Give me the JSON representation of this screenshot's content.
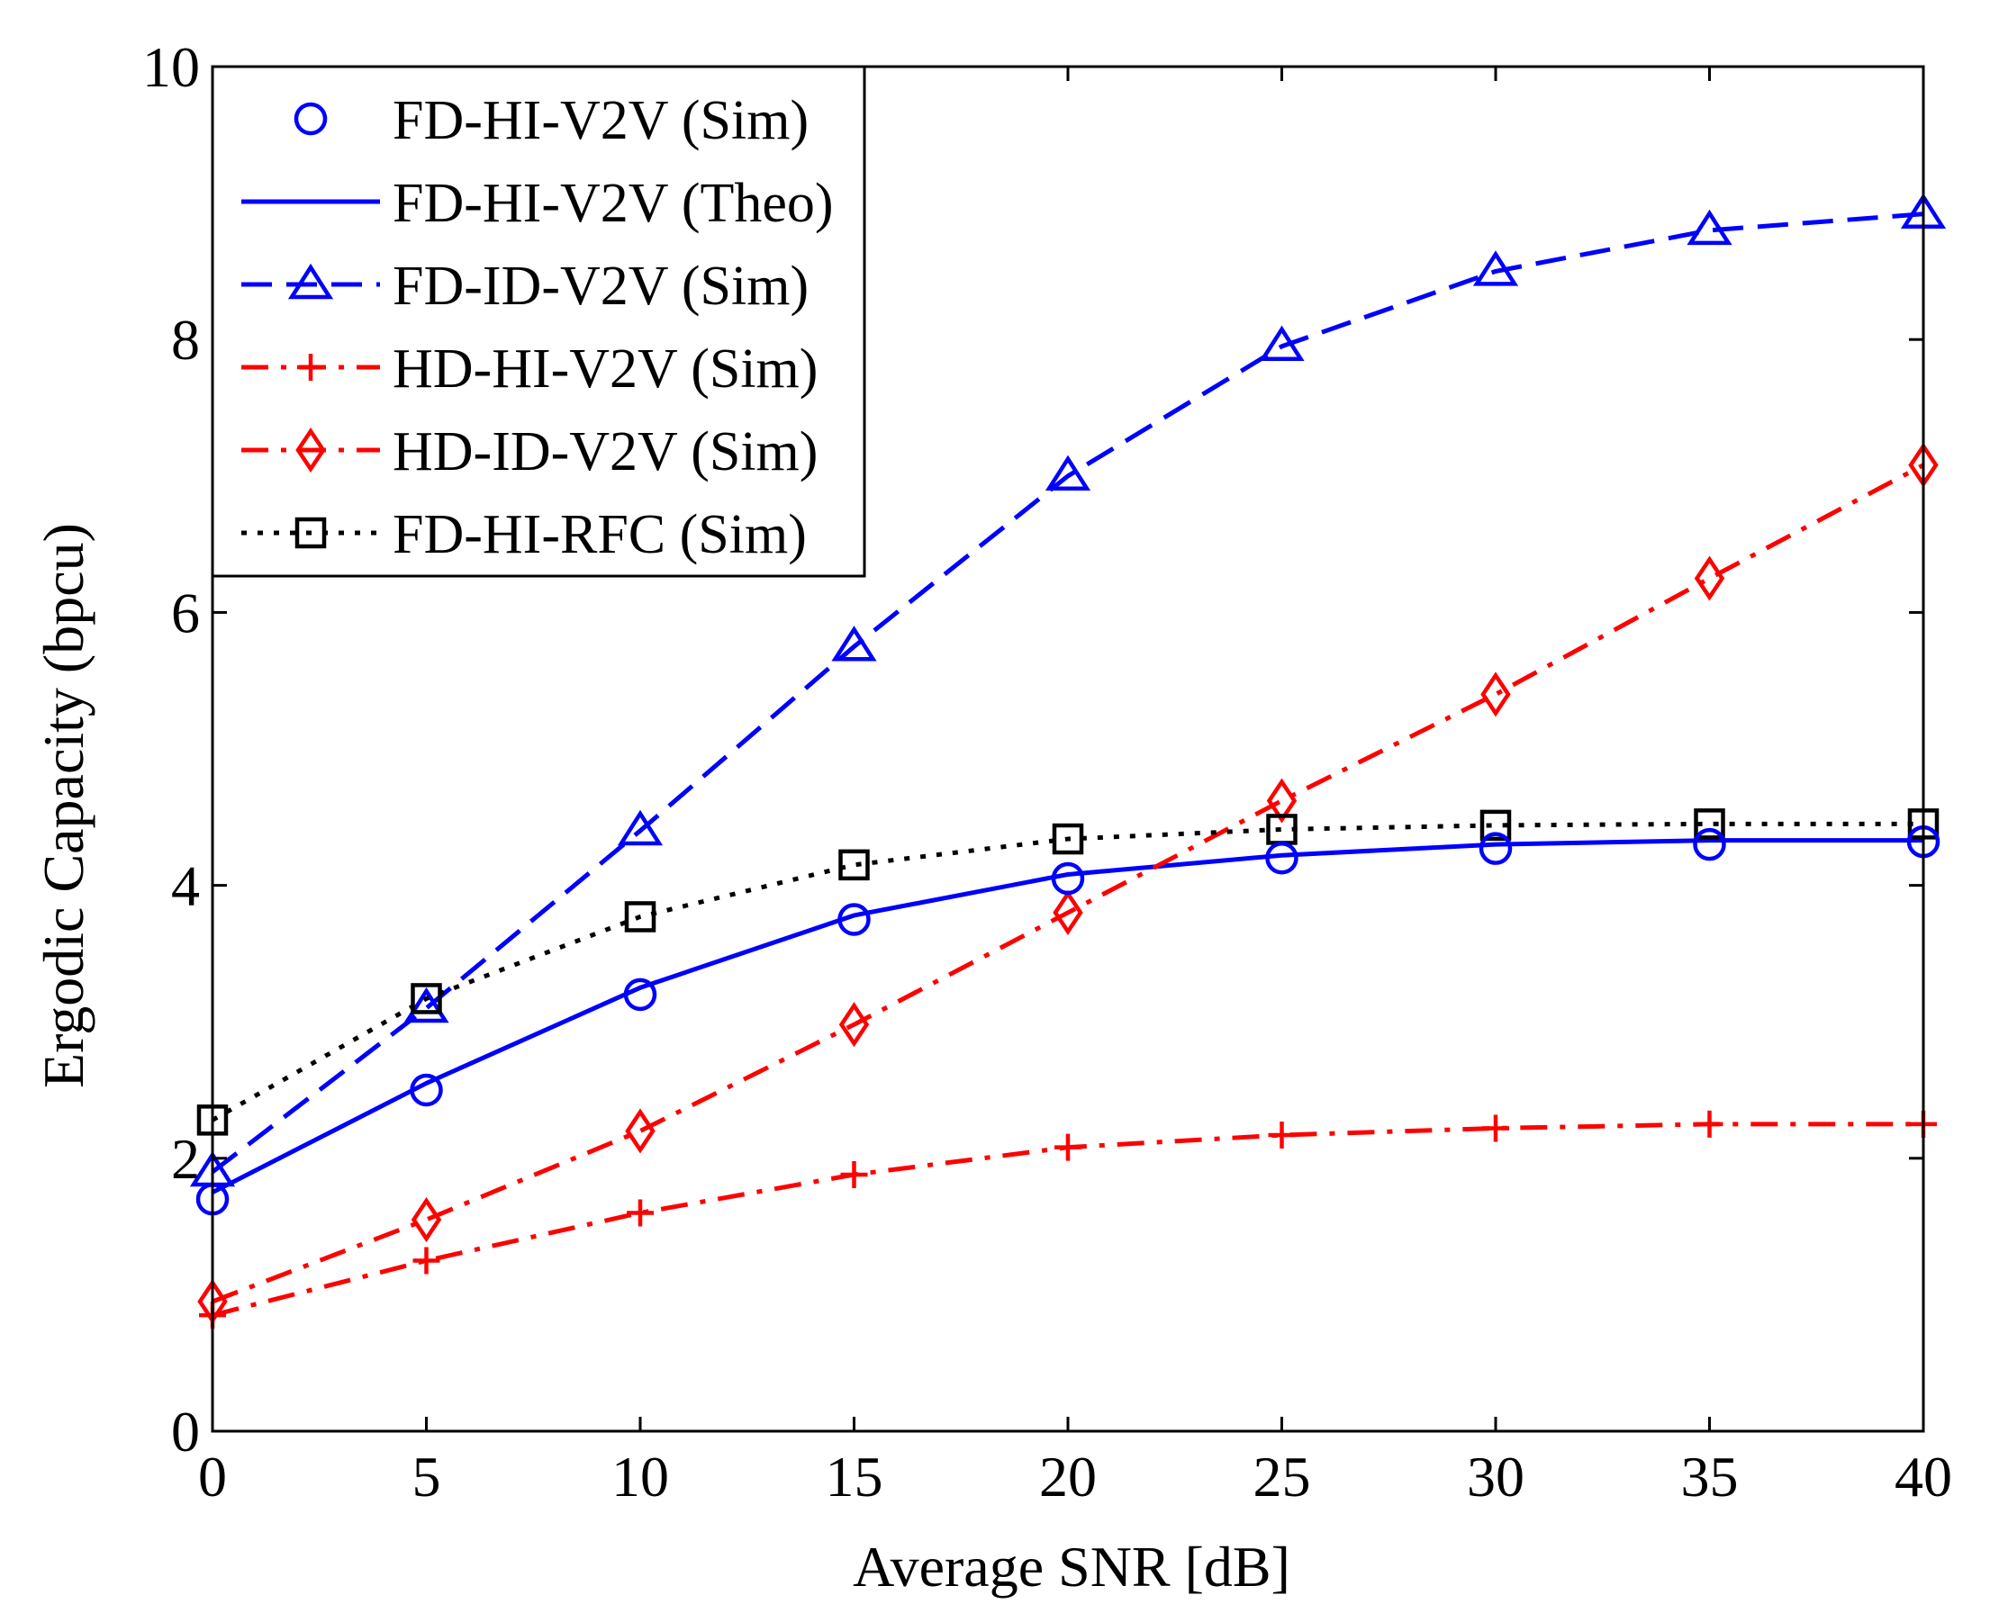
{
  "chart_data": {
    "type": "line",
    "title": "",
    "xlabel": "Average SNR [dB]",
    "ylabel": "Ergodic Capacity (bpcu)",
    "xlim": [
      0,
      40
    ],
    "ylim": [
      0,
      10
    ],
    "xticks": [
      0,
      5,
      10,
      15,
      20,
      25,
      30,
      35,
      40
    ],
    "yticks": [
      0,
      2,
      4,
      6,
      8,
      10
    ],
    "x": [
      0,
      5,
      10,
      15,
      20,
      25,
      30,
      35,
      40
    ],
    "grid": false,
    "legend_position": "top-left",
    "series": [
      {
        "name": "FD-HI-V2V (Sim)",
        "values": [
          1.7,
          2.5,
          3.2,
          3.75,
          4.05,
          4.2,
          4.27,
          4.3,
          4.32
        ],
        "color": "#0000ff",
        "line": "none",
        "marker": "circle"
      },
      {
        "name": "FD-HI-V2V (Theo)",
        "values": [
          1.75,
          2.55,
          3.25,
          3.78,
          4.08,
          4.22,
          4.3,
          4.33,
          4.33
        ],
        "color": "#0000ff",
        "line": "solid",
        "marker": "none"
      },
      {
        "name": "FD-ID-V2V (Sim)",
        "values": [
          1.9,
          3.1,
          4.4,
          5.75,
          7.0,
          7.95,
          8.5,
          8.8,
          8.92
        ],
        "color": "#0000ff",
        "line": "dashed",
        "marker": "triangle"
      },
      {
        "name": "HD-HI-V2V (Sim)",
        "values": [
          0.85,
          1.25,
          1.6,
          1.88,
          2.08,
          2.17,
          2.22,
          2.25,
          2.25
        ],
        "color": "#ff0000",
        "line": "dashdot",
        "marker": "plus"
      },
      {
        "name": "HD-ID-V2V (Sim)",
        "values": [
          0.95,
          1.55,
          2.2,
          2.98,
          3.8,
          4.62,
          5.4,
          6.25,
          7.08
        ],
        "color": "#ff0000",
        "line": "dashdot",
        "marker": "diamond"
      },
      {
        "name": "FD-HI-RFC (Sim)",
        "values": [
          2.28,
          3.17,
          3.77,
          4.15,
          4.34,
          4.41,
          4.44,
          4.45,
          4.45
        ],
        "color": "#000000",
        "line": "dotted",
        "marker": "square"
      }
    ]
  }
}
